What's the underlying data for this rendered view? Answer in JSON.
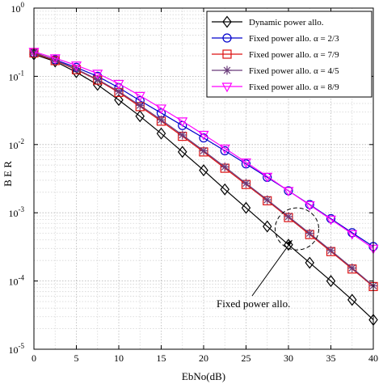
{
  "chart_data": {
    "type": "line",
    "xlabel": "EbNo(dB)",
    "ylabel": "B E R",
    "xlim": [
      0,
      40
    ],
    "ylim": [
      1e-05,
      1
    ],
    "y_scale": "log",
    "grid": true,
    "legend_position": "top-right",
    "x_ticks": [
      0,
      5,
      10,
      15,
      20,
      25,
      30,
      35,
      40
    ],
    "y_ticks": [
      {
        "value": 1,
        "label": "10",
        "exp": "0"
      },
      {
        "value": 0.1,
        "label": "10",
        "exp": "-1"
      },
      {
        "value": 0.01,
        "label": "10",
        "exp": "-2"
      },
      {
        "value": 0.001,
        "label": "10",
        "exp": "-3"
      },
      {
        "value": 0.0001,
        "label": "10",
        "exp": "-4"
      },
      {
        "value": 1e-05,
        "label": "10",
        "exp": "-5"
      }
    ],
    "x": [
      0,
      2.5,
      5,
      7.5,
      10,
      12.5,
      15,
      17.5,
      20,
      22.5,
      25,
      27.5,
      30,
      32.5,
      35,
      37.5,
      40
    ],
    "series": [
      {
        "name": "Dynamic power allo.",
        "color": "#000000",
        "marker": "diamond",
        "values": [
          0.21,
          0.165,
          0.115,
          0.075,
          0.045,
          0.026,
          0.0145,
          0.0078,
          0.0042,
          0.0022,
          0.00118,
          0.00063,
          0.00034,
          0.000185,
          0.0001,
          5.3e-05,
          2.7e-05
        ]
      },
      {
        "name": "Fixed power allo. α = 2/3",
        "color": "#0000cc",
        "marker": "circle",
        "values": [
          0.22,
          0.175,
          0.135,
          0.1,
          0.068,
          0.044,
          0.029,
          0.019,
          0.0125,
          0.0081,
          0.0052,
          0.0033,
          0.0021,
          0.00132,
          0.00082,
          0.00051,
          0.00032
        ]
      },
      {
        "name": "Fixed power allo. α = 7/9",
        "color": "#dd1111",
        "marker": "square",
        "values": [
          0.22,
          0.17,
          0.125,
          0.088,
          0.058,
          0.036,
          0.022,
          0.0132,
          0.0078,
          0.0045,
          0.0026,
          0.0015,
          0.00085,
          0.00048,
          0.00027,
          0.00015,
          8.3e-05
        ]
      },
      {
        "name": "Fixed power allo. α = 4/5",
        "color": "#6a3b7a",
        "marker": "star",
        "values": [
          0.225,
          0.172,
          0.127,
          0.09,
          0.06,
          0.0375,
          0.023,
          0.0138,
          0.0081,
          0.0047,
          0.0027,
          0.00155,
          0.00088,
          0.0005,
          0.00028,
          0.000155,
          8.5e-05
        ]
      },
      {
        "name": "Fixed power allo. α = 8/9",
        "color": "#ff00ff",
        "marker": "triangle-down",
        "values": [
          0.23,
          0.185,
          0.145,
          0.11,
          0.078,
          0.052,
          0.034,
          0.022,
          0.014,
          0.0088,
          0.0055,
          0.0034,
          0.0021,
          0.0013,
          0.0008,
          0.00049,
          0.0003
        ]
      }
    ],
    "annotation": {
      "text": "Fixed power allo.",
      "ellipse_center": [
        31,
        0.00058
      ]
    }
  }
}
